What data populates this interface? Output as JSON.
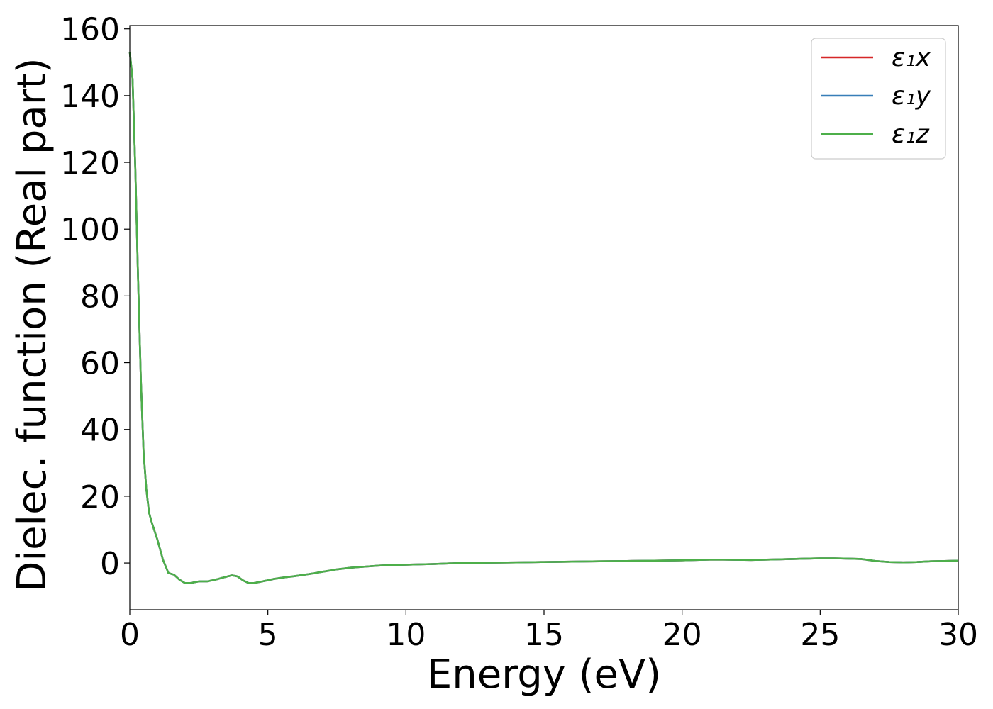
{
  "chart_data": {
    "type": "line",
    "title": "",
    "xlabel": "Energy (eV)",
    "ylabel": "Dielec. function (Real part)",
    "xlim": [
      0,
      30
    ],
    "ylim": [
      -14,
      161
    ],
    "xticks": [
      0,
      5,
      10,
      15,
      20,
      25,
      30
    ],
    "yticks": [
      0,
      20,
      40,
      60,
      80,
      100,
      120,
      140,
      160
    ],
    "grid": false,
    "legend_position": "top-right",
    "series": [
      {
        "name": "ε₁x",
        "color": "#d62728",
        "x": [
          0,
          0.1,
          0.2,
          0.3,
          0.4,
          0.5,
          0.6,
          0.7,
          0.8,
          1.0,
          1.2,
          1.4,
          1.6,
          1.8,
          2.0,
          2.2,
          2.5,
          2.8,
          3.1,
          3.4,
          3.7,
          3.9,
          4.1,
          4.3,
          4.5,
          4.8,
          5.2,
          5.6,
          6.0,
          6.5,
          7.0,
          7.5,
          8.0,
          8.5,
          9.0,
          9.5,
          10.0,
          11.0,
          12.0,
          13.0,
          14.0,
          15.0,
          16.0,
          17.0,
          18.0,
          19.0,
          20.0,
          21.0,
          21.5,
          22.5,
          23.5,
          24.5,
          25.0,
          25.5,
          26.0,
          26.5,
          27.0,
          27.5,
          28.0,
          28.5,
          29.0,
          29.5,
          30.0
        ],
        "y": [
          153,
          145,
          118,
          85,
          55,
          33,
          22,
          15,
          12,
          7,
          1,
          -3,
          -3.5,
          -5,
          -6,
          -6,
          -5.5,
          -5.5,
          -5,
          -4.3,
          -3.7,
          -4,
          -5.2,
          -6,
          -6,
          -5.5,
          -4.8,
          -4.3,
          -3.9,
          -3.3,
          -2.6,
          -1.9,
          -1.4,
          -1.1,
          -0.8,
          -0.6,
          -0.5,
          -0.3,
          0,
          0.1,
          0.2,
          0.3,
          0.4,
          0.5,
          0.6,
          0.7,
          0.8,
          1,
          1,
          0.9,
          1.1,
          1.3,
          1.4,
          1.4,
          1.3,
          1.2,
          0.6,
          0.3,
          0.2,
          0.3,
          0.5,
          0.6,
          0.7
        ]
      },
      {
        "name": "ε₁y",
        "color": "#377eb8",
        "x": [
          0,
          0.1,
          0.2,
          0.3,
          0.4,
          0.5,
          0.6,
          0.7,
          0.8,
          1.0,
          1.2,
          1.4,
          1.6,
          1.8,
          2.0,
          2.2,
          2.5,
          2.8,
          3.1,
          3.4,
          3.7,
          3.9,
          4.1,
          4.3,
          4.5,
          4.8,
          5.2,
          5.6,
          6.0,
          6.5,
          7.0,
          7.5,
          8.0,
          8.5,
          9.0,
          9.5,
          10.0,
          11.0,
          12.0,
          13.0,
          14.0,
          15.0,
          16.0,
          17.0,
          18.0,
          19.0,
          20.0,
          21.0,
          21.5,
          22.5,
          23.5,
          24.5,
          25.0,
          25.5,
          26.0,
          26.5,
          27.0,
          27.5,
          28.0,
          28.5,
          29.0,
          29.5,
          30.0
        ],
        "y": [
          153,
          145,
          118,
          85,
          55,
          33,
          22,
          15,
          12,
          7,
          1,
          -3,
          -3.5,
          -5,
          -6,
          -6,
          -5.5,
          -5.5,
          -5,
          -4.3,
          -3.7,
          -4,
          -5.2,
          -6,
          -6,
          -5.5,
          -4.8,
          -4.3,
          -3.9,
          -3.3,
          -2.6,
          -1.9,
          -1.4,
          -1.1,
          -0.8,
          -0.6,
          -0.5,
          -0.3,
          0,
          0.1,
          0.2,
          0.3,
          0.4,
          0.5,
          0.6,
          0.7,
          0.8,
          1,
          1,
          0.9,
          1.1,
          1.3,
          1.4,
          1.4,
          1.3,
          1.2,
          0.6,
          0.3,
          0.2,
          0.3,
          0.5,
          0.6,
          0.7
        ]
      },
      {
        "name": "ε₁z",
        "color": "#4daf4a",
        "x": [
          0,
          0.1,
          0.2,
          0.3,
          0.4,
          0.5,
          0.6,
          0.7,
          0.8,
          1.0,
          1.2,
          1.4,
          1.6,
          1.8,
          2.0,
          2.2,
          2.5,
          2.8,
          3.1,
          3.4,
          3.7,
          3.9,
          4.1,
          4.3,
          4.5,
          4.8,
          5.2,
          5.6,
          6.0,
          6.5,
          7.0,
          7.5,
          8.0,
          8.5,
          9.0,
          9.5,
          10.0,
          11.0,
          12.0,
          13.0,
          14.0,
          15.0,
          16.0,
          17.0,
          18.0,
          19.0,
          20.0,
          21.0,
          21.5,
          22.5,
          23.5,
          24.5,
          25.0,
          25.5,
          26.0,
          26.5,
          27.0,
          27.5,
          28.0,
          28.5,
          29.0,
          29.5,
          30.0
        ],
        "y": [
          153,
          145,
          118,
          85,
          55,
          33,
          22,
          15,
          12,
          7,
          1,
          -3,
          -3.5,
          -5,
          -6,
          -6,
          -5.5,
          -5.5,
          -5,
          -4.3,
          -3.7,
          -4,
          -5.2,
          -6,
          -6,
          -5.5,
          -4.8,
          -4.3,
          -3.9,
          -3.3,
          -2.6,
          -1.9,
          -1.4,
          -1.1,
          -0.8,
          -0.6,
          -0.5,
          -0.3,
          0,
          0.1,
          0.2,
          0.3,
          0.4,
          0.5,
          0.6,
          0.7,
          0.8,
          1,
          1,
          0.9,
          1.1,
          1.3,
          1.4,
          1.4,
          1.3,
          1.2,
          0.6,
          0.3,
          0.2,
          0.3,
          0.5,
          0.6,
          0.7
        ]
      }
    ]
  }
}
